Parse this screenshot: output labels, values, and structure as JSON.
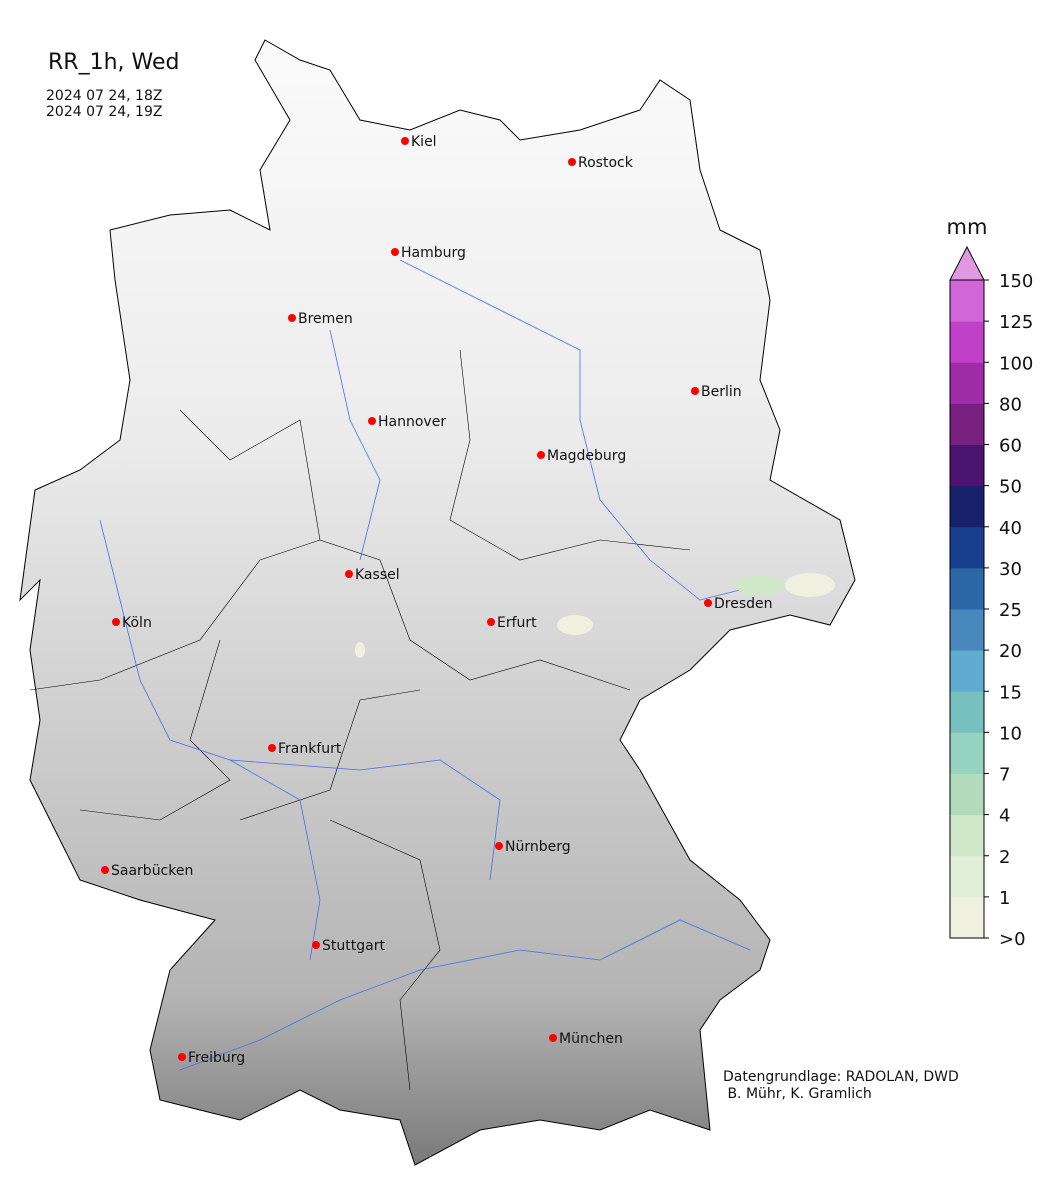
{
  "title": "RR_1h, Wed",
  "time_lines": [
    "2024 07 24, 18Z",
    "2024 07 24, 19Z"
  ],
  "credits": [
    "Datengrundlage: RADOLAN, DWD",
    " B. Mühr, K. Gramlich"
  ],
  "colorbar": {
    "unit": "mm",
    "ticks": [
      ">0",
      "1",
      "2",
      "4",
      "7",
      "10",
      "15",
      "20",
      "25",
      "30",
      "40",
      "50",
      "60",
      "80",
      "100",
      "125",
      "150"
    ],
    "colors": [
      "#f0f0e0",
      "#e2efd8",
      "#d0e8c8",
      "#b2dbbc",
      "#96d2c0",
      "#78c0c0",
      "#60acd0",
      "#4888bc",
      "#2c68a8",
      "#173f8e",
      "#17216a",
      "#4a1470",
      "#782080",
      "#a02ca8",
      "#c040c8",
      "#d066d8"
    ],
    "extend_color": "#e098e0"
  },
  "cities": [
    {
      "name": "Kiel"
    },
    {
      "name": "Rostock"
    },
    {
      "name": "Hamburg"
    },
    {
      "name": "Bremen"
    },
    {
      "name": "Berlin"
    },
    {
      "name": "Hannover"
    },
    {
      "name": "Magdeburg"
    },
    {
      "name": "Kassel"
    },
    {
      "name": "Köln"
    },
    {
      "name": "Erfurt"
    },
    {
      "name": "Dresden"
    },
    {
      "name": "Frankfurt"
    },
    {
      "name": "Nürnberg"
    },
    {
      "name": "Saarbücken"
    },
    {
      "name": "Stuttgart"
    },
    {
      "name": "München"
    },
    {
      "name": "Freiburg"
    }
  ],
  "colors": {
    "city_marker": "#ff0000",
    "river": "#4a6ee8",
    "border": "#000000"
  }
}
